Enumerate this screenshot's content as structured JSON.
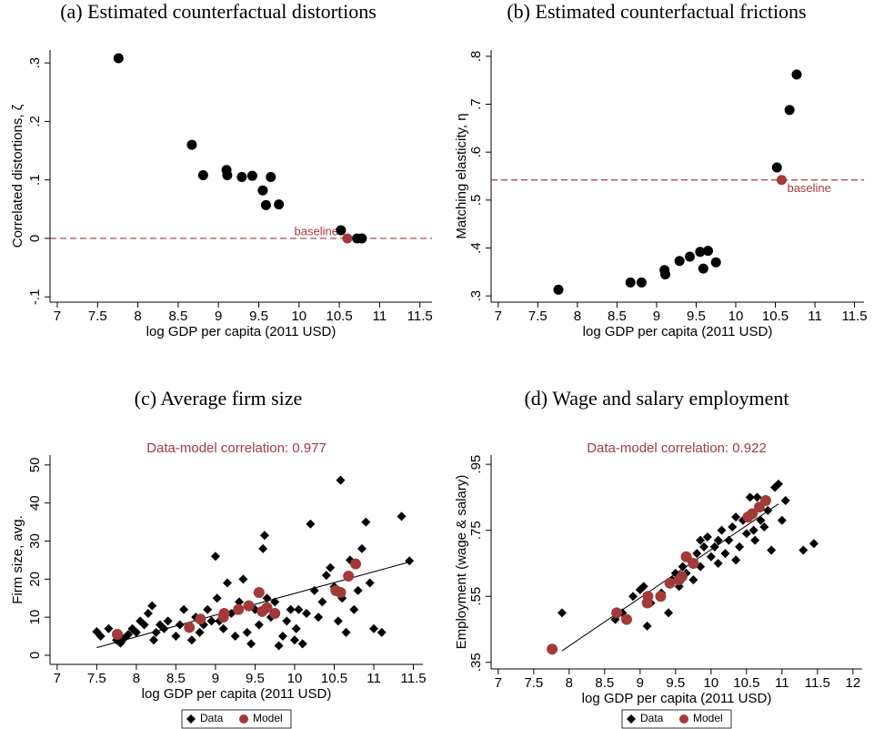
{
  "chart_data": [
    {
      "type": "scatter",
      "title": "(a) Estimated counterfactual distortions",
      "xlabel": "log GDP per capita (2011 USD)",
      "ylabel": "Correlated distortions, ζ",
      "xlim": [
        6.91,
        11.65
      ],
      "ylim": [
        -0.109,
        0.322
      ],
      "xticks": [
        7,
        7.5,
        8,
        8.5,
        9,
        9.5,
        10,
        10.5,
        11,
        11.5
      ],
      "yticks": [
        {
          "value": -0.1,
          "label": "-.1"
        },
        0,
        {
          "value": 0.1,
          "label": ".1"
        },
        {
          "value": 0.2,
          "label": ".2"
        },
        {
          "value": 0.3,
          "label": ".3"
        }
      ],
      "hline": {
        "value": 0,
        "label": "baseline",
        "color": "#a33a3a"
      },
      "series": [
        {
          "color": "#000000",
          "marker": "circle",
          "x": [
            7.76,
            8.67,
            8.81,
            9.1,
            9.11,
            9.29,
            9.42,
            9.55,
            9.59,
            9.65,
            9.75,
            10.52,
            10.72,
            10.78
          ],
          "values": [
            0.308,
            0.16,
            0.108,
            0.117,
            0.108,
            0.105,
            0.107,
            0.082,
            0.057,
            0.105,
            0.058,
            0.014,
            0,
            0
          ]
        },
        {
          "color": "#a33a3a",
          "marker": "circle",
          "x": [
            10.6
          ],
          "values": [
            0
          ]
        }
      ]
    },
    {
      "type": "scatter",
      "title": "(b) Estimated counterfactual frictions",
      "xlabel": "log GDP per capita (2011 USD)",
      "ylabel": "Matching elasticity, η",
      "xlim": [
        6.91,
        11.62
      ],
      "ylim": [
        0.287,
        0.813
      ],
      "xticks": [
        7,
        7.5,
        8,
        8.5,
        9,
        9.5,
        10,
        10.5,
        11,
        11.5
      ],
      "yticks": [
        {
          "value": 0.3,
          "label": ".3"
        },
        {
          "value": 0.4,
          "label": ".4"
        },
        {
          "value": 0.5,
          "label": ".5"
        },
        {
          "value": 0.6,
          "label": ".6"
        },
        {
          "value": 0.7,
          "label": ".7"
        },
        {
          "value": 0.8,
          "label": ".8"
        }
      ],
      "hline": {
        "value": 0.542,
        "label": "baseline",
        "color": "#a33a3a"
      },
      "series": [
        {
          "color": "#000000",
          "marker": "circle",
          "x": [
            7.76,
            8.67,
            8.81,
            9.1,
            9.11,
            9.29,
            9.42,
            9.55,
            9.59,
            9.65,
            9.75,
            10.52,
            10.68,
            10.77
          ],
          "values": [
            0.313,
            0.328,
            0.328,
            0.354,
            0.345,
            0.373,
            0.382,
            0.392,
            0.357,
            0.394,
            0.37,
            0.568,
            0.688,
            0.762
          ]
        },
        {
          "color": "#a33a3a",
          "marker": "circle",
          "x": [
            10.58
          ],
          "values": [
            0.542
          ]
        }
      ]
    },
    {
      "type": "scatter",
      "title": "(c) Average firm size",
      "subtitle": "Data-model correlation: 0.977",
      "subtitle_color": "#a33a3a",
      "xlabel": "log GDP per capita (2011 USD)",
      "ylabel": "Firm size, avg.",
      "xlim": [
        6.91,
        11.62
      ],
      "ylim": [
        -2.4,
        52.6
      ],
      "xticks": [
        7,
        7.5,
        8,
        8.5,
        9,
        9.5,
        10,
        10.5,
        11,
        11.5
      ],
      "yticks": [
        0,
        10,
        20,
        30,
        40,
        50
      ],
      "fit": {
        "color": "#000000",
        "x": [
          7.5,
          11.45
        ],
        "values": [
          2,
          24.5
        ]
      },
      "series": [
        {
          "name": "Data",
          "color": "#000000",
          "marker": "diamond",
          "x": [
            7.5,
            7.55,
            7.65,
            7.75,
            7.8,
            7.85,
            7.9,
            7.95,
            8.0,
            8.05,
            8.1,
            8.15,
            8.2,
            8.22,
            8.25,
            8.3,
            8.35,
            8.4,
            8.5,
            8.55,
            8.6,
            8.7,
            8.75,
            8.8,
            8.85,
            8.9,
            8.95,
            9.0,
            9.02,
            9.05,
            9.1,
            9.15,
            9.2,
            9.25,
            9.3,
            9.35,
            9.4,
            9.45,
            9.5,
            9.55,
            9.6,
            9.62,
            9.65,
            9.7,
            9.75,
            9.8,
            9.85,
            9.9,
            9.95,
            10.0,
            10.02,
            10.05,
            10.1,
            10.15,
            10.2,
            10.25,
            10.3,
            10.35,
            10.4,
            10.45,
            10.5,
            10.55,
            10.58,
            10.6,
            10.65,
            10.7,
            10.75,
            10.8,
            10.85,
            10.9,
            10.95,
            11.0,
            11.1,
            11.35,
            11.45
          ],
          "values": [
            6.2,
            5,
            7,
            4,
            3.2,
            4.5,
            5.5,
            7,
            6,
            9,
            8,
            11,
            13,
            4,
            6,
            8,
            7,
            9,
            5,
            8,
            12,
            4,
            10,
            6,
            8,
            12,
            9,
            26,
            15,
            9,
            7,
            19,
            11,
            5,
            14,
            20,
            6,
            3,
            12,
            8,
            28,
            31.5,
            15,
            10,
            14,
            2.5,
            5,
            9,
            12,
            4,
            7,
            12,
            3,
            11,
            34.5,
            17,
            10,
            14,
            21,
            23,
            18,
            9,
            46,
            15,
            6,
            25,
            12,
            17,
            28,
            35,
            19,
            7,
            6,
            36.5,
            24.8
          ]
        },
        {
          "name": "Model",
          "color": "#a33a3a",
          "marker": "circle",
          "x": [
            7.76,
            8.67,
            8.81,
            9.1,
            9.11,
            9.29,
            9.42,
            9.55,
            9.59,
            9.65,
            9.75,
            10.52,
            10.58,
            10.68,
            10.77
          ],
          "values": [
            5.5,
            7.3,
            9.5,
            10,
            11,
            12,
            13,
            16.5,
            11.5,
            12.5,
            11,
            17,
            16.5,
            20.8,
            24
          ]
        }
      ]
    },
    {
      "type": "scatter",
      "title": "(d) Wage and salary employment",
      "subtitle": "Data-model correlation: 0.922",
      "subtitle_color": "#a33a3a",
      "xlabel": "log GDP per capita (2011 USD)",
      "ylabel": "Employment (wage & salary)",
      "xlim": [
        6.9,
        12.13
      ],
      "ylim": [
        0.33,
        0.978
      ],
      "xticks": [
        7,
        7.5,
        8,
        8.5,
        9,
        9.5,
        10,
        10.5,
        11,
        11.5,
        12
      ],
      "yticks": [
        {
          "value": 0.35,
          "label": ".35"
        },
        {
          "value": 0.55,
          "label": ".55"
        },
        {
          "value": 0.75,
          "label": ".75"
        },
        {
          "value": 0.95,
          "label": ".95"
        }
      ],
      "fit": {
        "color": "#000000",
        "x": [
          7.9,
          10.95
        ],
        "values": [
          0.385,
          0.83
        ]
      },
      "series": [
        {
          "name": "Data",
          "color": "#000000",
          "marker": "diamond",
          "x": [
            7.9,
            8.65,
            8.75,
            8.9,
            9.0,
            9.1,
            9.15,
            9.3,
            9.4,
            9.45,
            9.5,
            9.55,
            9.6,
            9.65,
            9.7,
            9.75,
            9.8,
            9.85,
            9.9,
            9.95,
            10.0,
            10.05,
            10.1,
            10.15,
            10.2,
            10.25,
            10.3,
            10.35,
            10.4,
            10.45,
            10.5,
            10.55,
            10.6,
            10.62,
            10.65,
            10.7,
            10.75,
            10.8,
            10.85,
            10.9,
            10.95,
            11.0,
            11.05,
            11.3,
            11.45,
            9.05,
            9.85,
            10.1,
            10.35,
            10.6
          ],
          "values": [
            0.5,
            0.48,
            0.5,
            0.55,
            0.57,
            0.46,
            0.53,
            0.56,
            0.5,
            0.6,
            0.62,
            0.58,
            0.64,
            0.62,
            0.66,
            0.6,
            0.68,
            0.64,
            0.7,
            0.73,
            0.67,
            0.7,
            0.65,
            0.75,
            0.68,
            0.72,
            0.76,
            0.66,
            0.7,
            0.78,
            0.74,
            0.85,
            0.8,
            0.72,
            0.85,
            0.78,
            0.76,
            0.81,
            0.69,
            0.88,
            0.89,
            0.78,
            0.84,
            0.69,
            0.71,
            0.58,
            0.72,
            0.72,
            0.79,
            0.75
          ]
        },
        {
          "name": "Model",
          "color": "#a33a3a",
          "marker": "circle",
          "x": [
            7.76,
            8.67,
            8.81,
            9.1,
            9.11,
            9.29,
            9.42,
            9.55,
            9.59,
            9.65,
            9.75,
            10.52,
            10.58,
            10.68,
            10.77
          ],
          "values": [
            0.39,
            0.5,
            0.48,
            0.53,
            0.55,
            0.55,
            0.59,
            0.6,
            0.61,
            0.67,
            0.65,
            0.79,
            0.8,
            0.82,
            0.84
          ]
        }
      ]
    }
  ]
}
